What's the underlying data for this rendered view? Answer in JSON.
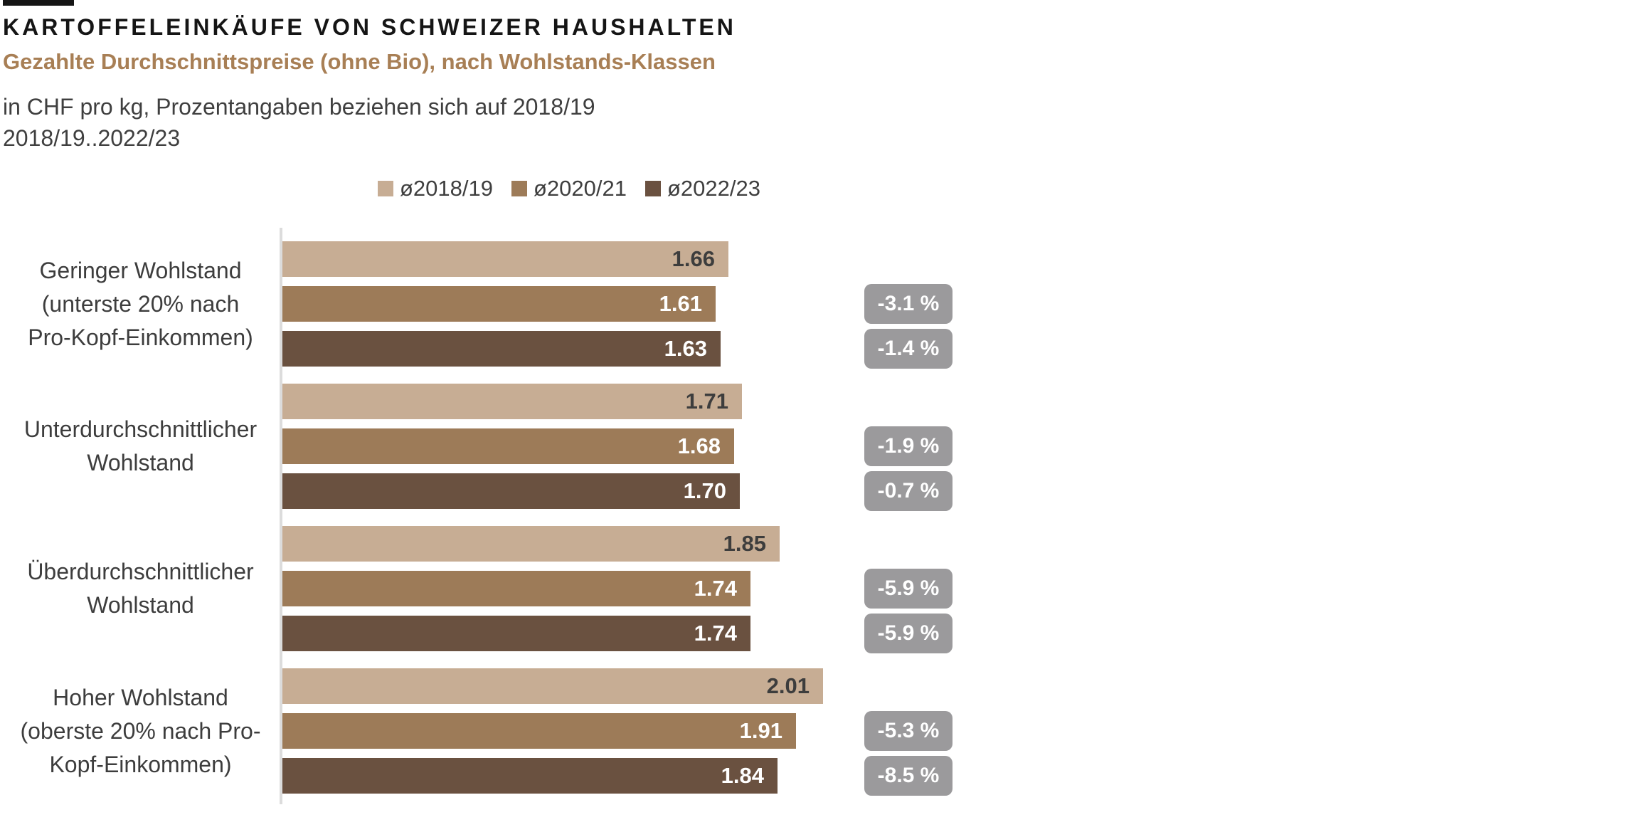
{
  "page": {
    "title": "KARTOFFELEINKÄUFE VON SCHWEIZER HAUSHALTEN",
    "subtitle": "Gezahlte Durchschnittspreise (ohne Bio), nach Wohlstands-Klassen",
    "note_line1": "in CHF pro kg, Prozentangaben beziehen sich auf 2018/19",
    "note_line2": "2018/19..2022/23"
  },
  "colors": {
    "title_text": "#151515",
    "subtitle_text": "#a87f55",
    "body_text": "#3d3d3d",
    "series_2018_19": "#c7ad94",
    "series_2020_21": "#9d7b58",
    "series_2022_23": "#6a5140",
    "badge_background": "#9b9a9c",
    "badge_text": "#ffffff",
    "axis_line": "#dcdcdc",
    "value_label_on_light_bar": "#3d3d3d",
    "value_label_on_dark_bar": "#ffffff"
  },
  "chart_data": {
    "type": "bar",
    "orientation": "horizontal",
    "unit": "CHF pro kg",
    "legend_position": "top-center",
    "grid": false,
    "value_axis_hidden": true,
    "series": [
      {
        "name": "ø2018/19",
        "color": "#c7ad94"
      },
      {
        "name": "ø2020/21",
        "color": "#9d7b58"
      },
      {
        "name": "ø2022/23",
        "color": "#6a5140"
      }
    ],
    "groups": [
      {
        "category": "Geringer Wohlstand (unterste 20% nach Pro-Kopf-Einkommen)",
        "label_lines": [
          "Geringer Wohlstand",
          "(unterste 20% nach",
          "Pro-Kopf-Einkommen)"
        ],
        "values": [
          1.66,
          1.61,
          1.63
        ],
        "value_labels": [
          "1.66",
          "1.61",
          "1.63"
        ],
        "pct_change_vs_2018_19": [
          null,
          "-3.1 %",
          "-1.4 %"
        ]
      },
      {
        "category": "Unterdurchschnittlicher Wohlstand",
        "label_lines": [
          "Unterdurchschnittlicher",
          "Wohlstand"
        ],
        "values": [
          1.71,
          1.68,
          1.7
        ],
        "value_labels": [
          "1.71",
          "1.68",
          "1.70"
        ],
        "pct_change_vs_2018_19": [
          null,
          "-1.9 %",
          "-0.7 %"
        ]
      },
      {
        "category": "Überdurchschnittlicher Wohlstand",
        "label_lines": [
          "Überdurchschnittlicher",
          "Wohlstand"
        ],
        "values": [
          1.85,
          1.74,
          1.74
        ],
        "value_labels": [
          "1.85",
          "1.74",
          "1.74"
        ],
        "pct_change_vs_2018_19": [
          null,
          "-5.9 %",
          "-5.9 %"
        ]
      },
      {
        "category": "Hoher Wohlstand (oberste 20% nach Pro-Kopf-Einkommen)",
        "label_lines": [
          "Hoher Wohlstand",
          "(oberste 20% nach Pro-",
          "Kopf-Einkommen)"
        ],
        "values": [
          2.01,
          1.91,
          1.84
        ],
        "value_labels": [
          "2.01",
          "1.91",
          "1.84"
        ],
        "pct_change_vs_2018_19": [
          null,
          "-5.3 %",
          "-8.5 %"
        ]
      }
    ]
  }
}
